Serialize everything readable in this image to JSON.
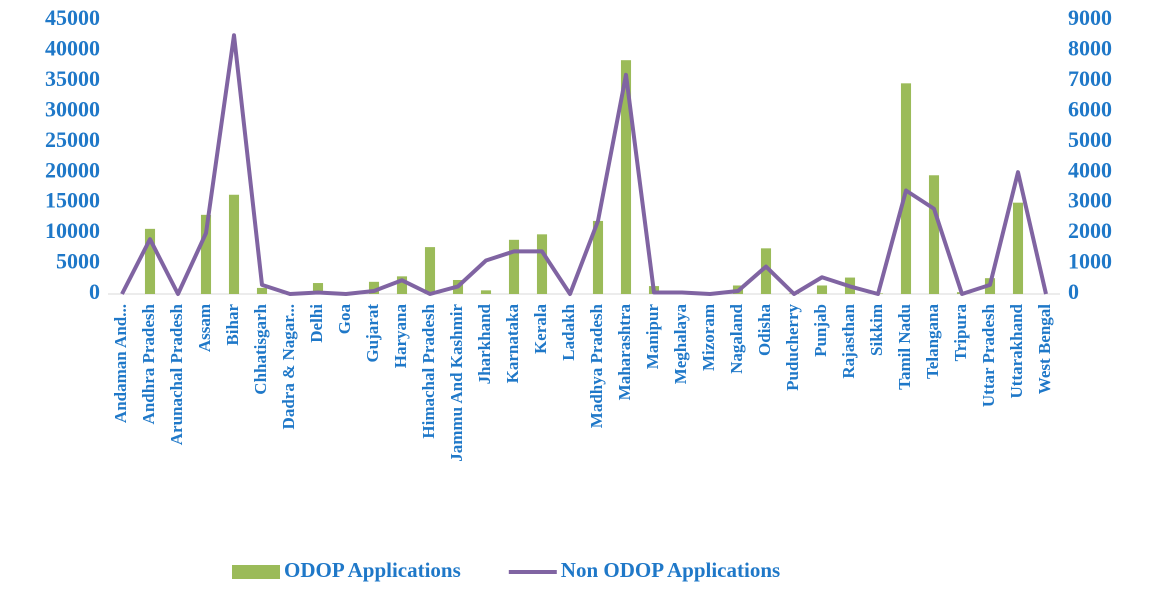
{
  "chart_data": {
    "type": "bar_line",
    "categories": [
      "Andaman And...",
      "Andhra Pradesh",
      "Arunachal Pradesh",
      "Assam",
      "Bihar",
      "Chhatisgarh",
      "Dadra & Nagar...",
      "Delhi",
      "Goa",
      "Gujarat",
      "Haryana",
      "Himachal Pradesh",
      "Jammu And Kashmir",
      "Jharkhand",
      "Karnataka",
      "Kerala",
      "Ladakh",
      "Madhya Pradesh",
      "Maharashtra",
      "Manipur",
      "Meghalaya",
      "Mizoram",
      "Nagaland",
      "Odisha",
      "Puducherry",
      "Punjab",
      "Rajasthan",
      "Sikkim",
      "Tamil Nadu",
      "Telangana",
      "Tripura",
      "Uttar Pradesh",
      "Uttarakhand",
      "West Bengal"
    ],
    "series": [
      {
        "name": "ODOP Applications",
        "type": "bar",
        "color": "#9bbb59",
        "values": [
          0,
          10700,
          0,
          13000,
          16300,
          1000,
          100,
          1800,
          300,
          2000,
          2900,
          7700,
          2300,
          600,
          8900,
          9800,
          0,
          12000,
          38400,
          1300,
          200,
          100,
          1400,
          7500,
          100,
          1400,
          2700,
          100,
          34600,
          19500,
          300,
          2600,
          15000,
          0
        ]
      },
      {
        "name": "Non ODOP Applications",
        "type": "line",
        "axis": "y2",
        "color": "#8064a2",
        "values": [
          0,
          1800,
          0,
          2000,
          8500,
          300,
          0,
          50,
          0,
          100,
          450,
          0,
          250,
          1100,
          1400,
          1400,
          0,
          2400,
          7200,
          50,
          50,
          0,
          100,
          900,
          0,
          550,
          250,
          0,
          3400,
          2800,
          0,
          300,
          4000,
          0
        ]
      }
    ],
    "ylim": [
      0,
      45000
    ],
    "yticks": [
      0,
      5000,
      10000,
      15000,
      20000,
      25000,
      30000,
      35000,
      40000,
      45000
    ],
    "y2lim": [
      0,
      9000
    ],
    "y2ticks": [
      0,
      1000,
      2000,
      3000,
      4000,
      5000,
      6000,
      7000,
      8000,
      9000
    ],
    "legend": "bottom"
  }
}
